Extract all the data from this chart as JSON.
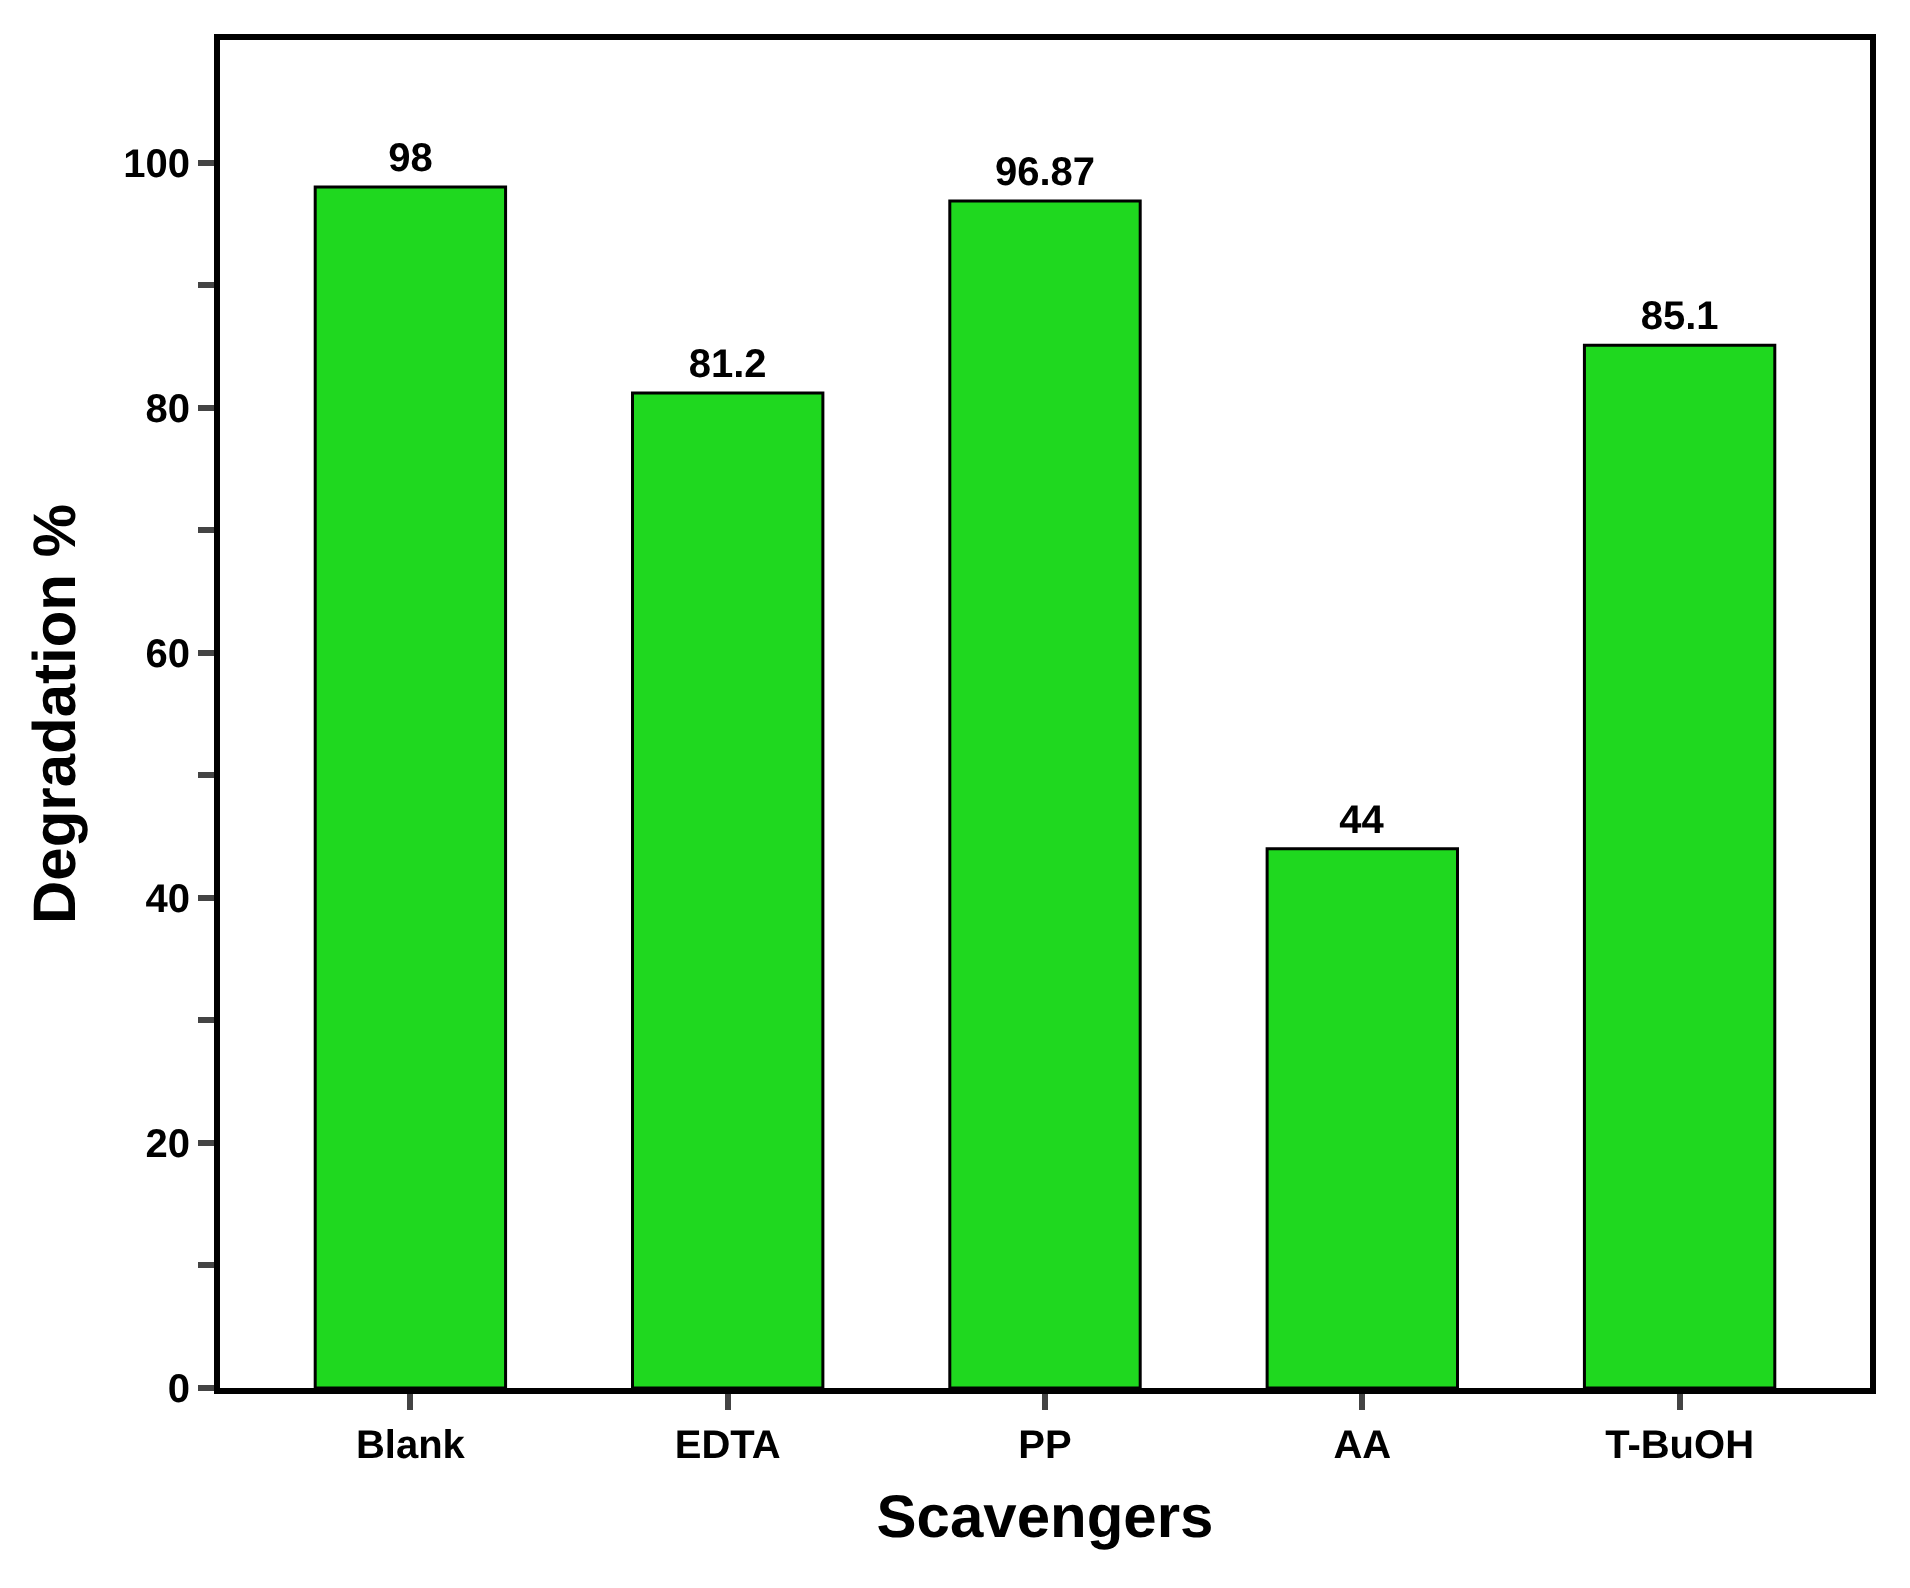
{
  "chart_data": {
    "type": "bar",
    "xlabel": "Scavengers",
    "ylabel": "Degradation %",
    "categories": [
      "Blank",
      "EDTA",
      "PP",
      "AA",
      "T-BuOH"
    ],
    "values": [
      98,
      81.2,
      96.87,
      44,
      85.1
    ],
    "color": "#1fd81f",
    "ylim": [
      0,
      110
    ],
    "yticks": [
      0,
      {
        "value": 10,
        "label": null
      },
      20,
      {
        "value": 30,
        "label": null
      },
      40,
      {
        "value": 50,
        "label": null
      },
      60,
      {
        "value": 70,
        "label": null
      },
      80,
      {
        "value": 90,
        "label": null
      },
      100
    ],
    "data_labels": true
  }
}
